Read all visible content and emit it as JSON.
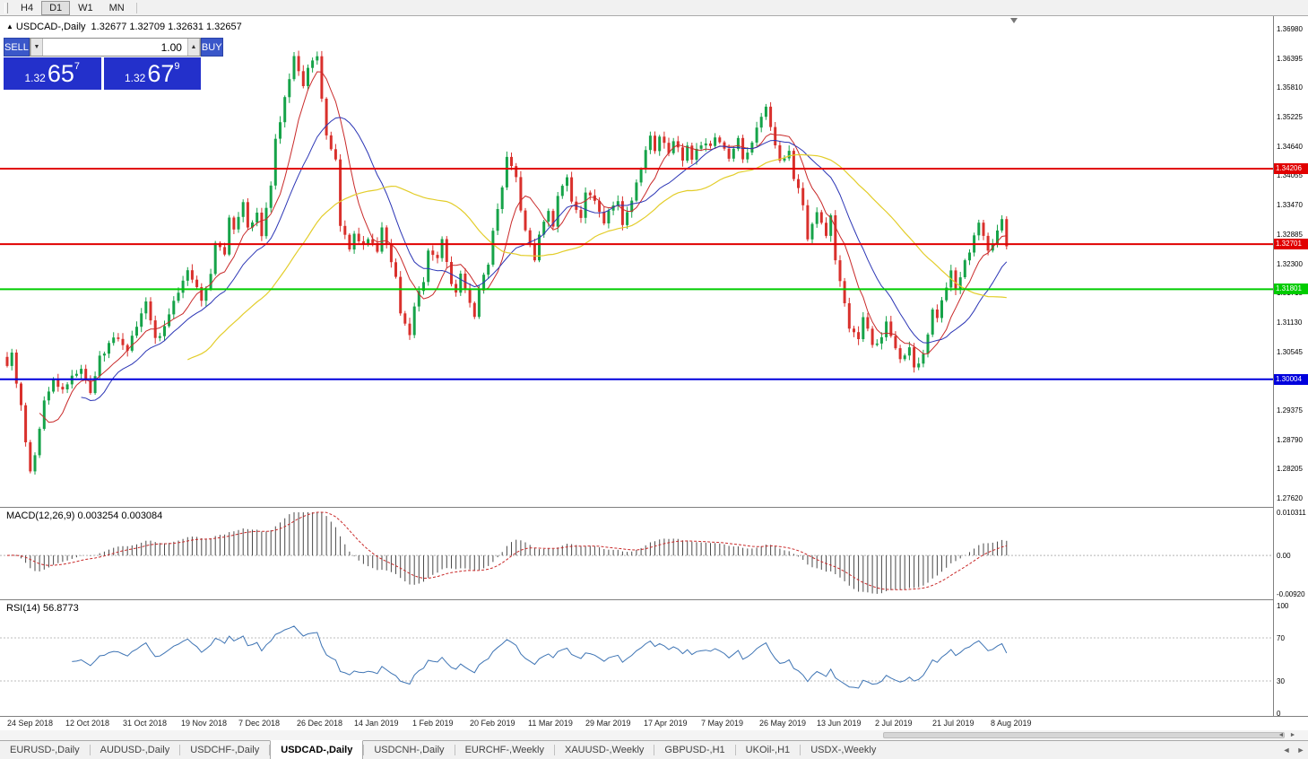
{
  "toolbar": {
    "timeframes": [
      "H4",
      "D1",
      "W1",
      "MN"
    ],
    "active_timeframe": "D1"
  },
  "chart_header": {
    "collapse_icon": "▲",
    "symbol": "USDCAD-,Daily",
    "ohlc": "1.32677 1.32709 1.32631 1.32657"
  },
  "trade_panel": {
    "sell_label": "SELL",
    "buy_label": "BUY",
    "volume": "1.00",
    "spin_down": "▼",
    "spin_up": "▲",
    "sell_price": {
      "base": "1.32",
      "big": "65",
      "sup": "7"
    },
    "buy_price": {
      "base": "1.32",
      "big": "67",
      "sup": "9"
    }
  },
  "price_axis": [
    "1.36980",
    "1.36395",
    "1.35810",
    "1.35225",
    "1.34640",
    "1.34055",
    "1.33470",
    "1.32885",
    "1.32300",
    "1.31715",
    "1.31130",
    "1.30545",
    "1.29960",
    "1.29375",
    "1.28790",
    "1.28205",
    "1.27620"
  ],
  "hlines": [
    {
      "label": "1.34206",
      "value": 1.34206,
      "color": "#e10000"
    },
    {
      "label": "1.32701",
      "value": 1.32701,
      "color": "#e10000"
    },
    {
      "label": "1.31801",
      "value": 1.31801,
      "color": "#00cc00"
    },
    {
      "label": "1.30004",
      "value": 1.30004,
      "color": "#0000dd"
    }
  ],
  "macd_panel": {
    "label": "MACD(12,26,9) 0.003254 0.003084",
    "axis": [
      "0.010311",
      "0.00",
      "-0.00920"
    ],
    "max": 0.010311,
    "min": -0.0092
  },
  "rsi_panel": {
    "label": "RSI(14) 56.8773",
    "axis": [
      "100",
      "70",
      "30",
      "0"
    ],
    "levels": [
      70,
      30
    ]
  },
  "date_axis": [
    "24 Sep 2018",
    "12 Oct 2018",
    "31 Oct 2018",
    "19 Nov 2018",
    "7 Dec 2018",
    "26 Dec 2018",
    "14 Jan 2019",
    "1 Feb 2019",
    "20 Feb 2019",
    "11 Mar 2019",
    "29 Mar 2019",
    "17 Apr 2019",
    "7 May 2019",
    "26 May 2019",
    "13 Jun 2019",
    "2 Jul 2019",
    "21 Jul 2019",
    "8 Aug 2019"
  ],
  "tabs": {
    "active_index": 3,
    "items": [
      "EURUSD-,Daily",
      "AUDUSD-,Daily",
      "USDCHF-,Daily",
      "USDCAD-,Daily",
      "USDCNH-,Daily",
      "EURCHF-,Weekly",
      "XAUUSD-,Weekly",
      "GBPUSD-,H1",
      "UKOil-,H1",
      "USDX-,Weekly"
    ]
  },
  "chart_data": {
    "type": "candlestick",
    "symbol": "USDCAD",
    "timeframe": "Daily",
    "last_close": 1.32657,
    "price_range": [
      1.2762,
      1.3698
    ],
    "num_candles": 217,
    "indicators": {
      "ma_fast_period": 8,
      "ma_mid_period": 17,
      "ma_slow_period": 40,
      "macd": [
        12,
        26,
        9
      ],
      "rsi": 14
    },
    "colors": {
      "up": "#16a349",
      "down": "#d9302c",
      "ma_fast": "#c92a2a",
      "ma_mid": "#2b35b5",
      "ma_slow": "#e3cd2a",
      "rsi": "#3e74b4",
      "macd_hist": "#4a4a4a",
      "macd_signal": "#c92a2a"
    },
    "anchors": [
      [
        0,
        1.303
      ],
      [
        1,
        1.3048
      ],
      [
        2,
        1.2995
      ],
      [
        3,
        1.2945
      ],
      [
        4,
        1.2875
      ],
      [
        5,
        1.282
      ],
      [
        6,
        1.2848
      ],
      [
        7,
        1.2902
      ],
      [
        8,
        1.2958
      ],
      [
        10,
        1.3
      ],
      [
        12,
        1.2978
      ],
      [
        14,
        1.3008
      ],
      [
        16,
        1.3022
      ],
      [
        18,
        1.2976
      ],
      [
        20,
        1.3042
      ],
      [
        23,
        1.3086
      ],
      [
        26,
        1.3062
      ],
      [
        28,
        1.3106
      ],
      [
        30,
        1.3152
      ],
      [
        32,
        1.3082
      ],
      [
        34,
        1.3102
      ],
      [
        37,
        1.3176
      ],
      [
        39,
        1.3222
      ],
      [
        42,
        1.3162
      ],
      [
        44,
        1.3206
      ],
      [
        45,
        1.3278
      ],
      [
        47,
        1.3252
      ],
      [
        48,
        1.3328
      ],
      [
        49,
        1.3302
      ],
      [
        51,
        1.3358
      ],
      [
        52,
        1.3306
      ],
      [
        54,
        1.3332
      ],
      [
        55,
        1.3286
      ],
      [
        57,
        1.3392
      ],
      [
        58,
        1.3478
      ],
      [
        60,
        1.3558
      ],
      [
        61,
        1.36
      ],
      [
        62,
        1.3648
      ],
      [
        64,
        1.359
      ],
      [
        65,
        1.3618
      ],
      [
        67,
        1.3645
      ],
      [
        68,
        1.3562
      ],
      [
        69,
        1.3482
      ],
      [
        71,
        1.344
      ],
      [
        72,
        1.3312
      ],
      [
        74,
        1.3262
      ],
      [
        75,
        1.3292
      ],
      [
        77,
        1.3268
      ],
      [
        78,
        1.3286
      ],
      [
        80,
        1.3258
      ],
      [
        81,
        1.3302
      ],
      [
        82,
        1.3272
      ],
      [
        84,
        1.3206
      ],
      [
        85,
        1.3132
      ],
      [
        87,
        1.3086
      ],
      [
        88,
        1.3142
      ],
      [
        90,
        1.32
      ],
      [
        91,
        1.3256
      ],
      [
        93,
        1.324
      ],
      [
        94,
        1.3282
      ],
      [
        96,
        1.3196
      ],
      [
        97,
        1.3168
      ],
      [
        98,
        1.3212
      ],
      [
        100,
        1.3152
      ],
      [
        101,
        1.3128
      ],
      [
        102,
        1.3182
      ],
      [
        104,
        1.3232
      ],
      [
        105,
        1.3302
      ],
      [
        107,
        1.3382
      ],
      [
        108,
        1.3442
      ],
      [
        110,
        1.3402
      ],
      [
        111,
        1.3332
      ],
      [
        113,
        1.3268
      ],
      [
        114,
        1.3242
      ],
      [
        115,
        1.3292
      ],
      [
        117,
        1.3332
      ],
      [
        118,
        1.3308
      ],
      [
        119,
        1.3362
      ],
      [
        121,
        1.3408
      ],
      [
        122,
        1.3352
      ],
      [
        124,
        1.3322
      ],
      [
        125,
        1.3372
      ],
      [
        127,
        1.3362
      ],
      [
        129,
        1.3312
      ],
      [
        130,
        1.3332
      ],
      [
        132,
        1.3352
      ],
      [
        133,
        1.3312
      ],
      [
        134,
        1.3332
      ],
      [
        136,
        1.3392
      ],
      [
        137,
        1.3422
      ],
      [
        139,
        1.3482
      ],
      [
        140,
        1.3452
      ],
      [
        141,
        1.3482
      ],
      [
        143,
        1.3452
      ],
      [
        144,
        1.3472
      ],
      [
        146,
        1.3442
      ],
      [
        147,
        1.3462
      ],
      [
        148,
        1.3442
      ],
      [
        150,
        1.3472
      ],
      [
        152,
        1.3462
      ],
      [
        153,
        1.3482
      ],
      [
        155,
        1.3462
      ],
      [
        156,
        1.3442
      ],
      [
        158,
        1.3482
      ],
      [
        159,
        1.3442
      ],
      [
        161,
        1.3472
      ],
      [
        162,
        1.3502
      ],
      [
        164,
        1.3545
      ],
      [
        165,
        1.3506
      ],
      [
        166,
        1.3472
      ],
      [
        167,
        1.3432
      ],
      [
        169,
        1.3452
      ],
      [
        170,
        1.3402
      ],
      [
        172,
        1.3352
      ],
      [
        173,
        1.3282
      ],
      [
        175,
        1.3332
      ],
      [
        177,
        1.3292
      ],
      [
        178,
        1.3322
      ],
      [
        179,
        1.3242
      ],
      [
        181,
        1.3152
      ],
      [
        182,
        1.3102
      ],
      [
        184,
        1.3082
      ],
      [
        185,
        1.3122
      ],
      [
        187,
        1.3072
      ],
      [
        189,
        1.3082
      ],
      [
        190,
        1.3112
      ],
      [
        192,
        1.3062
      ],
      [
        193,
        1.3042
      ],
      [
        195,
        1.3062
      ],
      [
        196,
        1.3022
      ],
      [
        198,
        1.3052
      ],
      [
        199,
        1.3092
      ],
      [
        200,
        1.3142
      ],
      [
        201,
        1.3122
      ],
      [
        202,
        1.3162
      ],
      [
        204,
        1.3212
      ],
      [
        205,
        1.3182
      ],
      [
        207,
        1.3232
      ],
      [
        208,
        1.3252
      ],
      [
        210,
        1.3312
      ],
      [
        211,
        1.3282
      ],
      [
        212,
        1.3252
      ],
      [
        214,
        1.3292
      ],
      [
        215,
        1.332
      ],
      [
        216,
        1.32657
      ]
    ]
  }
}
